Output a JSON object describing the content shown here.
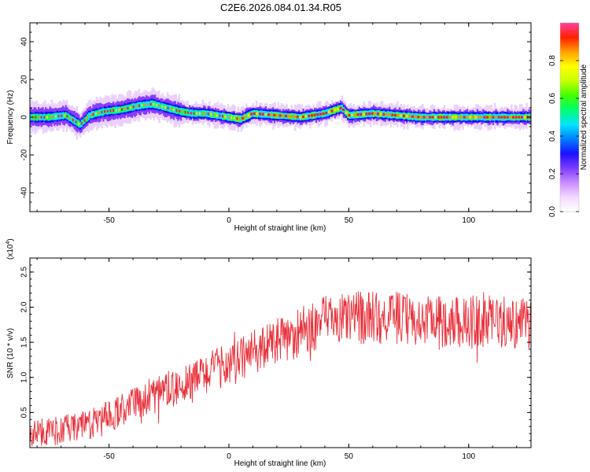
{
  "title": "C2E6.2026.084.01.34.R05",
  "chart_data": [
    {
      "type": "heatmap",
      "xlabel": "Height of straight line (km)",
      "ylabel": "Frequency (Hz)",
      "xlim": [
        -83,
        126
      ],
      "ylim": [
        -50,
        50
      ],
      "x_ticks": [
        -50,
        0,
        50,
        100
      ],
      "y_ticks": [
        -40,
        -20,
        0,
        20,
        40
      ],
      "colorbar": {
        "label": "Normalized spectral amplitude",
        "range": [
          0,
          1
        ],
        "ticks": [
          "0.0",
          "0.2",
          "0.4",
          "0.6",
          "0.8"
        ],
        "colors": [
          "#ffffff",
          "#f3d9ff",
          "#c98bff",
          "#7b3cff",
          "#1a10ff",
          "#0080ff",
          "#00e5ff",
          "#00ff70",
          "#40ff00",
          "#c8ff00",
          "#ffff00",
          "#ffa000",
          "#ff2000",
          "#ff40a0"
        ]
      },
      "ridge": {
        "x": [
          -83,
          -75,
          -68,
          -62,
          -58,
          -52,
          -45,
          -38,
          -32,
          -26,
          -20,
          -15,
          -10,
          -5,
          0,
          5,
          10,
          20,
          30,
          40,
          47,
          50,
          60,
          70,
          80,
          90,
          100,
          110,
          120,
          126
        ],
        "y": [
          0,
          0,
          1,
          -4,
          1,
          3,
          4,
          6,
          7,
          5,
          3,
          2,
          2,
          1,
          0,
          -1,
          2,
          1,
          0,
          2,
          5,
          1,
          2,
          1,
          0,
          0,
          0,
          0,
          0,
          0
        ]
      },
      "grid": false
    },
    {
      "type": "line",
      "xlabel": "Height of straight line (km)",
      "ylabel": "SNR (10 * v/v)",
      "y_multiplier": "(x10",
      "y_exponent": "4",
      "y_multiplier_close": ")",
      "xlim": [
        -83,
        126
      ],
      "ylim": [
        0,
        2.7
      ],
      "x_ticks": [
        -50,
        0,
        50,
        100
      ],
      "y_ticks": [
        "0.5",
        "1.0",
        "1.5",
        "2.0",
        "2.5"
      ],
      "series": [
        {
          "color": "#e8303a",
          "trend": {
            "x": [
              -83,
              -70,
              -60,
              -50,
              -40,
              -30,
              -20,
              -10,
              0,
              10,
              20,
              30,
              40,
              50,
              60,
              70,
              80,
              90,
              100,
              110,
              126
            ],
            "y": [
              0.2,
              0.25,
              0.3,
              0.45,
              0.6,
              0.75,
              0.9,
              1.05,
              1.2,
              1.35,
              1.5,
              1.65,
              1.8,
              1.85,
              1.85,
              1.85,
              1.8,
              1.8,
              1.8,
              1.8,
              1.75
            ]
          },
          "noise_amplitude": 0.3
        }
      ],
      "grid": false
    }
  ]
}
